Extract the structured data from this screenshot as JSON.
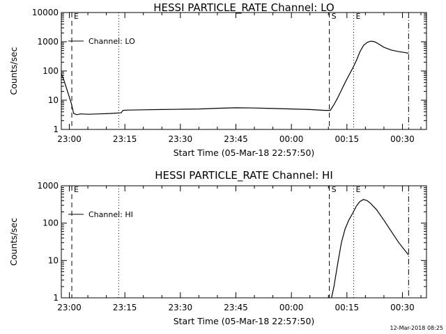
{
  "timestamp": "12-Mar-2018 08:25",
  "chart_data": [
    {
      "type": "line",
      "title": "HESSI PARTICLE_RATE Channel: LO",
      "xlabel": "Start Time (05-Mar-18 22:57:50)",
      "ylabel": "Counts/sec",
      "yscale": "log",
      "ylim": [
        1,
        10000
      ],
      "y_ticks": [
        "1",
        "10",
        "100",
        "1000",
        "10000"
      ],
      "xlim": [
        "22:57:50",
        "00:36:30"
      ],
      "x_ticks": [
        "23:00",
        "23:15",
        "23:30",
        "23:45",
        "00:00",
        "00:15",
        "00:30"
      ],
      "legend": "Channel: LO",
      "markers": [
        {
          "label": "E",
          "time": "23:00:40",
          "style": "dashed"
        },
        {
          "label": "",
          "time": "23:13:20",
          "style": "dotted"
        },
        {
          "label": "S",
          "time": "00:10:15",
          "style": "dashed"
        },
        {
          "label": "E",
          "time": "00:16:50",
          "style": "dotted"
        },
        {
          "label": "",
          "time": "00:31:40",
          "style": "dashdot"
        }
      ],
      "series": [
        {
          "points": [
            [
              "22:57:50",
              80
            ],
            [
              "22:58:30",
              50
            ],
            [
              "22:59:30",
              20
            ],
            [
              "23:00:30",
              8
            ],
            [
              "23:01:10",
              3.5
            ],
            [
              "23:02:00",
              3.2
            ],
            [
              "23:03:00",
              3.4
            ],
            [
              "23:05:00",
              3.3
            ],
            [
              "23:08:00",
              3.4
            ],
            [
              "23:11:00",
              3.5
            ],
            [
              "23:14:00",
              3.7
            ],
            [
              "23:14:30",
              4.5
            ],
            [
              "23:16:00",
              4.6
            ],
            [
              "23:20:00",
              4.7
            ],
            [
              "23:25:00",
              4.8
            ],
            [
              "23:30:00",
              4.9
            ],
            [
              "23:35:00",
              5.0
            ],
            [
              "23:40:00",
              5.3
            ],
            [
              "23:45:00",
              5.5
            ],
            [
              "23:50:00",
              5.4
            ],
            [
              "23:55:00",
              5.2
            ],
            [
              "00:00:00",
              5.0
            ],
            [
              "00:05:00",
              4.8
            ],
            [
              "00:09:00",
              4.5
            ],
            [
              "00:10:30",
              4.5
            ],
            [
              "00:11:30",
              7
            ],
            [
              "00:12:30",
              12
            ],
            [
              "00:13:30",
              22
            ],
            [
              "00:14:30",
              40
            ],
            [
              "00:15:30",
              70
            ],
            [
              "00:16:30",
              120
            ],
            [
              "00:17:30",
              220
            ],
            [
              "00:18:30",
              450
            ],
            [
              "00:19:30",
              750
            ],
            [
              "00:20:30",
              950
            ],
            [
              "00:21:30",
              1050
            ],
            [
              "00:22:30",
              1000
            ],
            [
              "00:23:30",
              850
            ],
            [
              "00:25:00",
              650
            ],
            [
              "00:27:00",
              520
            ],
            [
              "00:29:00",
              460
            ],
            [
              "00:31:00",
              420
            ],
            [
              "00:31:40",
              400
            ]
          ]
        }
      ]
    },
    {
      "type": "line",
      "title": "HESSI PARTICLE_RATE Channel: HI",
      "xlabel": "Start Time (05-Mar-18 22:57:50)",
      "ylabel": "Counts/sec",
      "yscale": "log",
      "ylim": [
        1,
        1000
      ],
      "y_ticks": [
        "1",
        "10",
        "100",
        "1000"
      ],
      "xlim": [
        "22:57:50",
        "00:36:30"
      ],
      "x_ticks": [
        "23:00",
        "23:15",
        "23:30",
        "23:45",
        "00:00",
        "00:15",
        "00:30"
      ],
      "legend": "Channel: HI",
      "markers": [
        {
          "label": "E",
          "time": "23:00:40",
          "style": "dashed"
        },
        {
          "label": "",
          "time": "23:13:20",
          "style": "dotted"
        },
        {
          "label": "S",
          "time": "00:10:15",
          "style": "dashed"
        },
        {
          "label": "E",
          "time": "00:16:50",
          "style": "dotted"
        },
        {
          "label": "",
          "time": "00:31:40",
          "style": "dashdot"
        }
      ],
      "series": [
        {
          "points": [
            [
              "00:10:50",
              1
            ],
            [
              "00:11:30",
              2
            ],
            [
              "00:12:30",
              8
            ],
            [
              "00:13:30",
              30
            ],
            [
              "00:14:30",
              70
            ],
            [
              "00:15:30",
              120
            ],
            [
              "00:16:30",
              180
            ],
            [
              "00:17:30",
              280
            ],
            [
              "00:18:30",
              380
            ],
            [
              "00:19:30",
              430
            ],
            [
              "00:20:30",
              400
            ],
            [
              "00:21:30",
              330
            ],
            [
              "00:23:00",
              230
            ],
            [
              "00:25:00",
              120
            ],
            [
              "00:27:00",
              60
            ],
            [
              "00:29:00",
              30
            ],
            [
              "00:31:40",
              14
            ]
          ]
        }
      ]
    }
  ]
}
